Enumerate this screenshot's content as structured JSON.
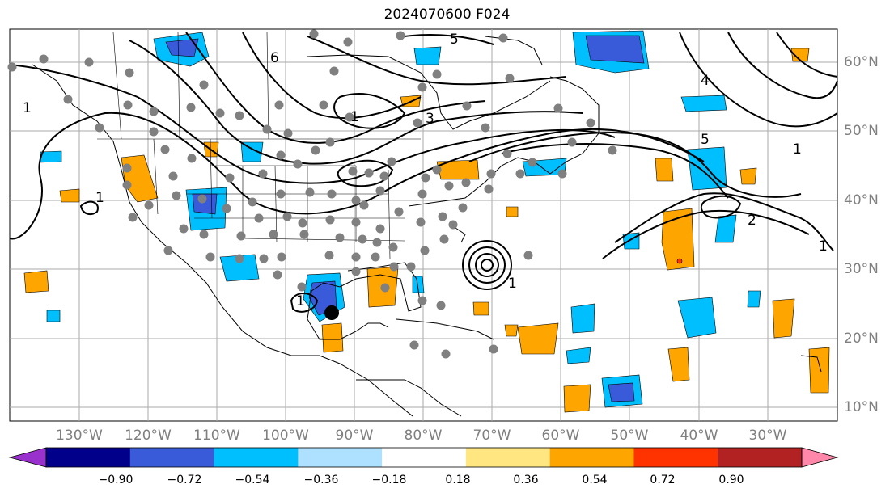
{
  "title": "2024070600 F024",
  "lat_labels": [
    "60°N",
    "50°N",
    "40°N",
    "30°N",
    "20°N",
    "10°N"
  ],
  "lon_labels": [
    "130°W",
    "120°W",
    "110°W",
    "100°W",
    "90°W",
    "80°W",
    "70°W",
    "60°W",
    "50°W",
    "40°W",
    "30°W"
  ],
  "colorbar": {
    "ticks": [
      "−0.90",
      "−0.72",
      "−0.54",
      "−0.36",
      "−0.18",
      "0.18",
      "0.36",
      "0.54",
      "0.72",
      "0.90"
    ],
    "colors": [
      "#9932cc",
      "#00008b",
      "#3a5bd9",
      "#00bfff",
      "#aee1ff",
      "#ffffff",
      "#ffe680",
      "#ffa500",
      "#ff3300",
      "#b22222",
      "#ff88aa"
    ],
    "under_color": "#9932cc",
    "over_color": "#ff88aa"
  },
  "contour_labels": [
    {
      "text": "1",
      "region": "pacific-west"
    },
    {
      "text": "1",
      "region": "western-us"
    },
    {
      "text": "6",
      "region": "canada-north"
    },
    {
      "text": "1",
      "region": "hudson-bay"
    },
    {
      "text": "5",
      "region": "labrador"
    },
    {
      "text": "3",
      "region": "great-lakes"
    },
    {
      "text": "1",
      "region": "north-atlantic"
    },
    {
      "text": "4",
      "region": "greenland"
    },
    {
      "text": "5",
      "region": "north-atlantic-central"
    },
    {
      "text": "2",
      "region": "central-atlantic"
    },
    {
      "text": "1",
      "region": "east-atlantic"
    },
    {
      "text": "1",
      "region": "bermuda-low"
    },
    {
      "text": "1",
      "region": "gulf-of-mexico"
    }
  ]
}
